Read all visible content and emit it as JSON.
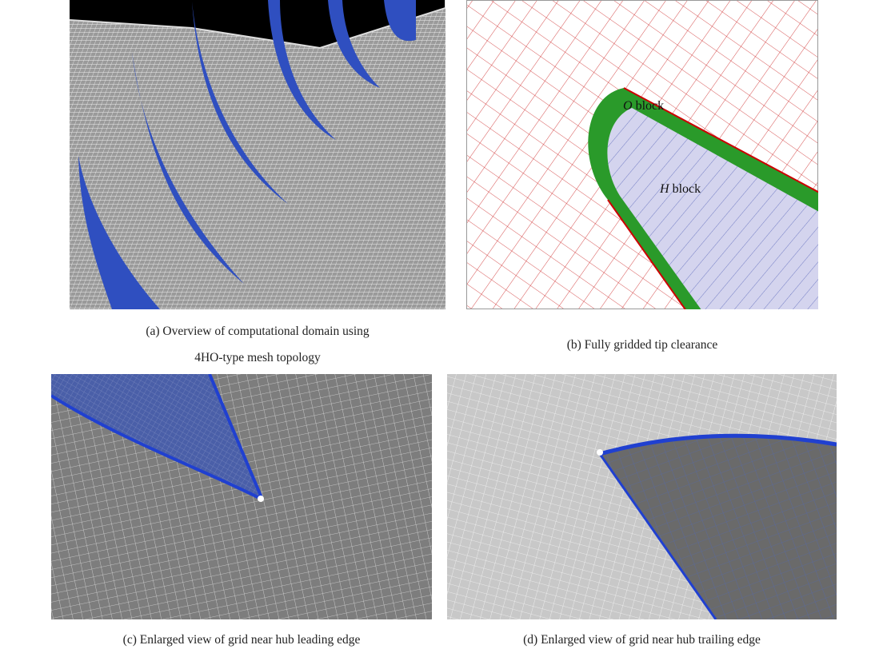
{
  "panels": [
    {
      "caption": [
        "(a) Overview of computational domain using",
        "4HO-type mesh topology"
      ]
    },
    {
      "caption": [
        "(b) Fully gridded tip clearance"
      ],
      "labels": [
        {
          "italic": "O",
          "text": " block"
        },
        {
          "italic": "H",
          "text": " block"
        }
      ]
    },
    {
      "caption": [
        "(c) Enlarged view of grid near hub leading edge"
      ]
    },
    {
      "caption": [
        "(d) Enlarged view of grid near hub trailing edge"
      ]
    }
  ]
}
